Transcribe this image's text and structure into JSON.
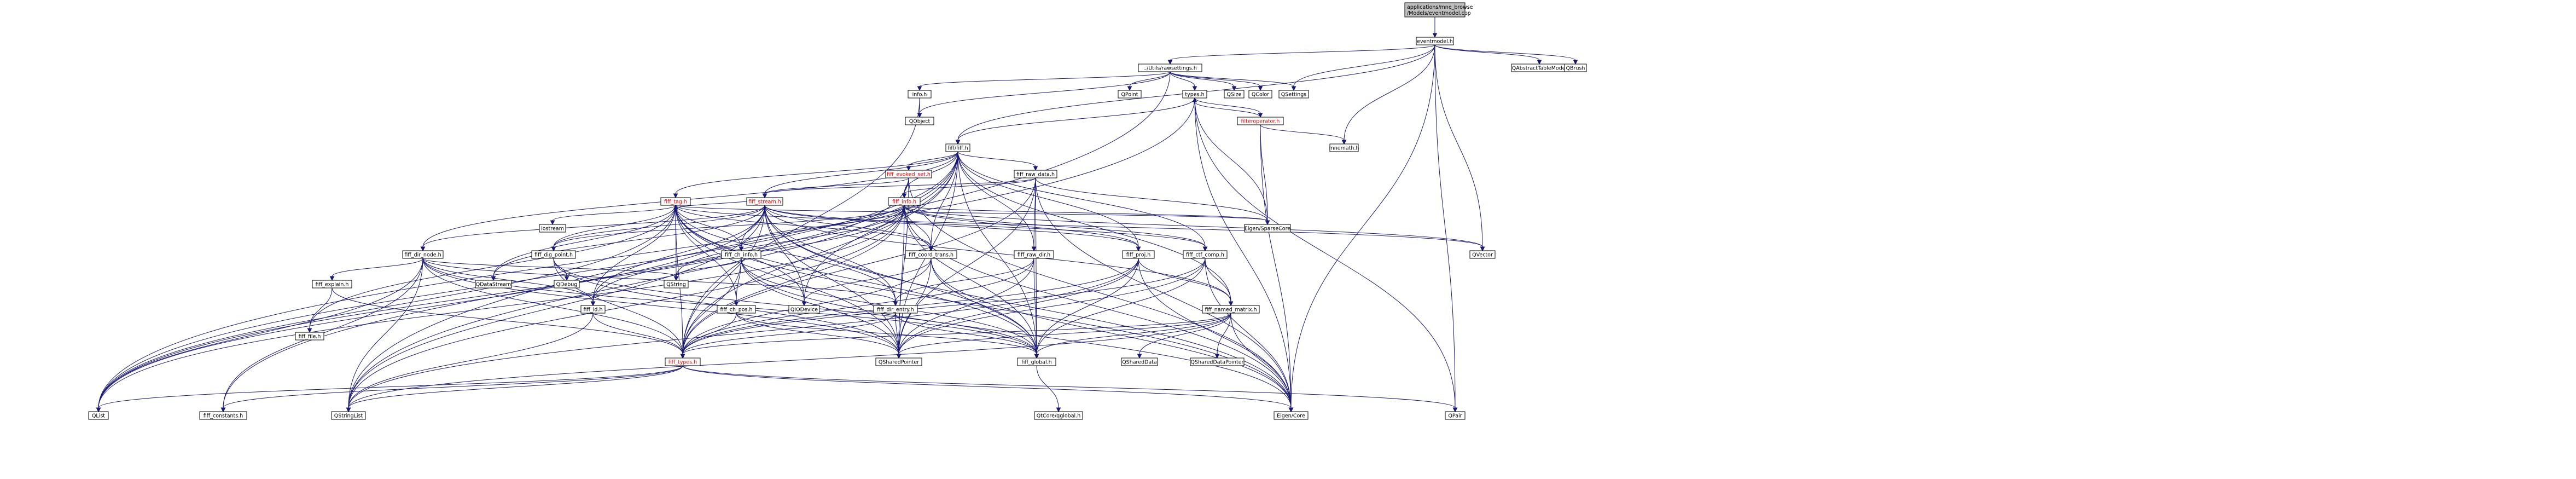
{
  "colors": {
    "edge": "#191970",
    "red_label": "#ff0000",
    "root_fill": "#bfbfbf",
    "node_fill": "#ffffff",
    "node_border": "#000000"
  },
  "graph": {
    "nodes": [
      {
        "id": "root",
        "label": "applications/mne_browse\n/Models/eventmodel.cpp",
        "style": "root"
      },
      {
        "id": "eventmodel_h",
        "label": "eventmodel.h"
      },
      {
        "id": "rawsettings_h",
        "label": "../Utils/rawsettings.h"
      },
      {
        "id": "qabstracttablemodel",
        "label": "QAbstractTableModel"
      },
      {
        "id": "qbrush",
        "label": "QBrush"
      },
      {
        "id": "info_h",
        "label": "info.h"
      },
      {
        "id": "qobject",
        "label": "QObject"
      },
      {
        "id": "qpoint",
        "label": "QPoint"
      },
      {
        "id": "types_h",
        "label": "types.h"
      },
      {
        "id": "qsize",
        "label": "QSize"
      },
      {
        "id": "qcolor",
        "label": "QColor"
      },
      {
        "id": "qsettings",
        "label": "QSettings"
      },
      {
        "id": "filteroperator_h",
        "label": "filteroperator.h",
        "style": "red"
      },
      {
        "id": "mnemath_h",
        "label": "mnemath.h"
      },
      {
        "id": "fiff_h",
        "label": "fiff/fiff.h"
      },
      {
        "id": "fiff_evoked_set_h",
        "label": "fiff_evoked_set.h",
        "style": "red"
      },
      {
        "id": "fiff_raw_data_h",
        "label": "fiff_raw_data.h"
      },
      {
        "id": "fiff_tag_h",
        "label": "fiff_tag.h",
        "style": "red"
      },
      {
        "id": "fiff_stream_h",
        "label": "fiff_stream.h",
        "style": "red"
      },
      {
        "id": "fiff_info_h",
        "label": "fiff_info.h",
        "style": "red"
      },
      {
        "id": "eigen_sparsecore",
        "label": "Eigen/SparseCore"
      },
      {
        "id": "qvector",
        "label": "QVector"
      },
      {
        "id": "iostream",
        "label": "iostream"
      },
      {
        "id": "fiff_dir_node_h",
        "label": "fiff_dir_node.h"
      },
      {
        "id": "fiff_dig_point_h",
        "label": "fiff_dig_point.h"
      },
      {
        "id": "fiff_ch_info_h",
        "label": "fiff_ch_info.h"
      },
      {
        "id": "fiff_coord_trans_h",
        "label": "fiff_coord_trans.h"
      },
      {
        "id": "fiff_raw_dir_h",
        "label": "fiff_raw_dir.h"
      },
      {
        "id": "fiff_proj_h",
        "label": "fiff_proj.h"
      },
      {
        "id": "fiff_ctf_comp_h",
        "label": "fiff_ctf_comp.h"
      },
      {
        "id": "fiff_explain_h",
        "label": "fiff_explain.h"
      },
      {
        "id": "qdatastream",
        "label": "QDataStream"
      },
      {
        "id": "qdebug",
        "label": "QDebug"
      },
      {
        "id": "qstring",
        "label": "QString"
      },
      {
        "id": "fiff_id_h",
        "label": "fiff_id.h"
      },
      {
        "id": "fiff_ch_pos_h",
        "label": "fiff_ch_pos.h"
      },
      {
        "id": "qiodevice",
        "label": "QIODevice"
      },
      {
        "id": "fiff_dir_entry_h",
        "label": "fiff_dir_entry.h"
      },
      {
        "id": "fiff_named_matrix_h",
        "label": "fiff_named_matrix.h"
      },
      {
        "id": "fiff_file_h",
        "label": "fiff_file.h"
      },
      {
        "id": "fiff_types_h",
        "label": "fiff_types.h",
        "style": "red"
      },
      {
        "id": "qsharedpointer",
        "label": "QSharedPointer"
      },
      {
        "id": "fiff_global_h",
        "label": "fiff_global.h"
      },
      {
        "id": "qshareddata",
        "label": "QSharedData"
      },
      {
        "id": "qshareddatapointer",
        "label": "QSharedDataPointer"
      },
      {
        "id": "qlist",
        "label": "QList"
      },
      {
        "id": "fiff_constants_h",
        "label": "fiff_constants.h"
      },
      {
        "id": "qstringlist",
        "label": "QStringList"
      },
      {
        "id": "qtcore_qtglobal",
        "label": "QtCore/qglobal.h"
      },
      {
        "id": "eigen_core",
        "label": "Eigen/Core"
      },
      {
        "id": "qpair",
        "label": "QPair"
      }
    ]
  }
}
